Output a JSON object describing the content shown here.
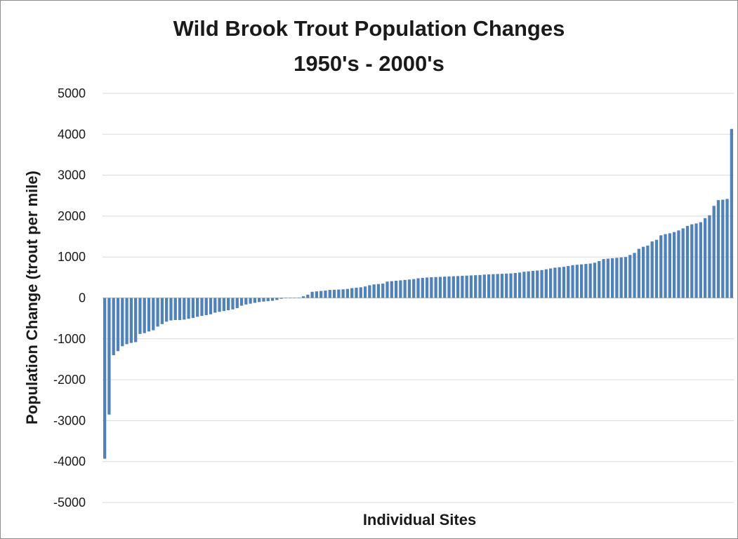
{
  "chart_data": {
    "type": "bar",
    "title": "Wild Brook Trout Population Changes",
    "subtitle": "1950's - 2000's",
    "xlabel": "Individual Sites",
    "ylabel": "Population Change (trout per mile)",
    "ylim": [
      -5000,
      5000
    ],
    "yticks": [
      5000,
      4000,
      3000,
      2000,
      1000,
      0,
      -1000,
      -2000,
      -3000,
      -4000,
      -5000
    ],
    "grid": true,
    "legend": "none",
    "bar_color": "#4f81bd",
    "values": [
      -3930,
      -2850,
      -1400,
      -1300,
      -1180,
      -1130,
      -1100,
      -1080,
      -880,
      -860,
      -820,
      -790,
      -700,
      -640,
      -580,
      -550,
      -540,
      -540,
      -530,
      -510,
      -490,
      -460,
      -440,
      -420,
      -400,
      -360,
      -340,
      -320,
      -300,
      -280,
      -250,
      -190,
      -160,
      -140,
      -120,
      -100,
      -90,
      -80,
      -70,
      -50,
      -20,
      -10,
      -5,
      0,
      10,
      40,
      80,
      150,
      160,
      170,
      180,
      195,
      200,
      205,
      210,
      220,
      240,
      250,
      260,
      280,
      310,
      330,
      340,
      350,
      400,
      410,
      420,
      430,
      440,
      450,
      460,
      480,
      490,
      500,
      505,
      510,
      515,
      520,
      525,
      530,
      535,
      540,
      545,
      550,
      555,
      560,
      570,
      575,
      580,
      585,
      590,
      595,
      600,
      610,
      620,
      640,
      650,
      660,
      670,
      680,
      700,
      720,
      740,
      750,
      760,
      780,
      800,
      810,
      820,
      830,
      840,
      860,
      900,
      950,
      960,
      970,
      980,
      990,
      1000,
      1050,
      1100,
      1200,
      1250,
      1280,
      1380,
      1420,
      1530,
      1560,
      1580,
      1610,
      1650,
      1700,
      1760,
      1800,
      1820,
      1850,
      1950,
      2020,
      2250,
      2390,
      2400,
      2420,
      4130
    ]
  }
}
